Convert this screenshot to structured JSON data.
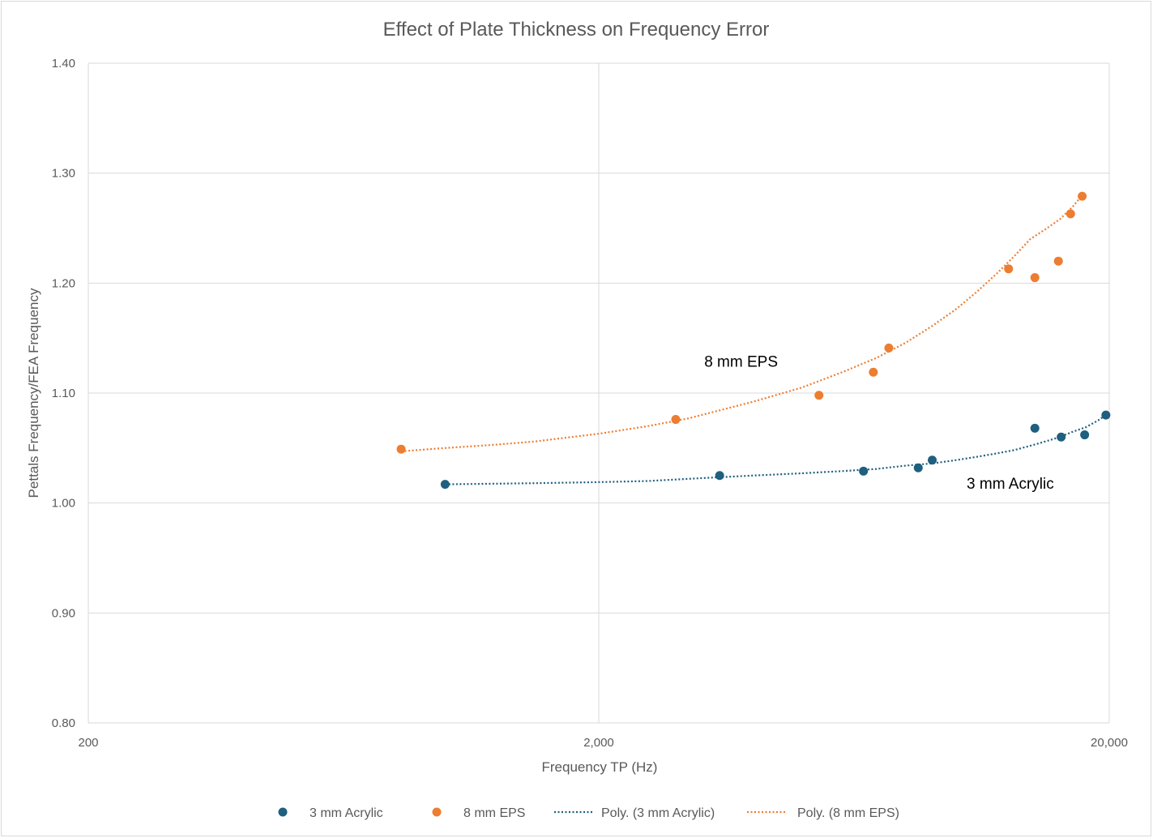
{
  "chart_data": {
    "type": "scatter",
    "title": "Effect of Plate Thickness on Frequency Error",
    "xlabel": "Frequency TP (Hz)",
    "ylabel": "Pettals Frequency/FEA Frequency",
    "x_scale": "log",
    "xlim": [
      200,
      20000
    ],
    "ylim": [
      0.8,
      1.4
    ],
    "x_ticks": [
      200,
      2000,
      20000
    ],
    "x_tick_labels": [
      "200",
      "2,000",
      "20,000"
    ],
    "y_ticks": [
      0.8,
      0.9,
      1.0,
      1.1,
      1.2,
      1.3,
      1.4
    ],
    "y_tick_labels": [
      "0.80",
      "0.90",
      "1.00",
      "1.10",
      "1.20",
      "1.30",
      "1.40"
    ],
    "grid": true,
    "legend_position": "bottom",
    "series": [
      {
        "name": "3 mm Acrylic",
        "color": "#1f5f7f",
        "x": [
          1000,
          3450,
          6600,
          8450,
          9000,
          14300,
          16100,
          17900,
          19700
        ],
        "y": [
          1.017,
          1.025,
          1.029,
          1.032,
          1.039,
          1.068,
          1.06,
          1.062,
          1.08
        ]
      },
      {
        "name": "8 mm EPS",
        "color": "#ed7d31",
        "x": [
          820,
          2830,
          5400,
          6900,
          7400,
          12700,
          14300,
          15900,
          16800,
          17700
        ],
        "y": [
          1.049,
          1.076,
          1.098,
          1.119,
          1.141,
          1.213,
          1.205,
          1.22,
          1.263,
          1.279
        ]
      }
    ],
    "trendlines": [
      {
        "name": "Poly. (3 mm Acrylic)",
        "color": "#1f5f7f",
        "x": [
          1000,
          1500,
          2000,
          2500,
          3000,
          4000,
          5000,
          6000,
          7000,
          8000,
          9000,
          10000,
          11000,
          12000,
          13000,
          14000,
          15000,
          16000,
          17000,
          18000,
          19000,
          19700
        ],
        "y": [
          1.017,
          1.018,
          1.019,
          1.02,
          1.022,
          1.025,
          1.027,
          1.029,
          1.031,
          1.034,
          1.036,
          1.039,
          1.042,
          1.045,
          1.048,
          1.052,
          1.056,
          1.06,
          1.065,
          1.069,
          1.075,
          1.08
        ]
      },
      {
        "name": "Poly. (8 mm EPS)",
        "color": "#ed7d31",
        "x": [
          820,
          1000,
          1250,
          1500,
          2000,
          2500,
          3000,
          4000,
          5000,
          6000,
          7000,
          8000,
          9000,
          10000,
          11000,
          12000,
          13000,
          14000,
          15000,
          16000,
          17000,
          17700
        ],
        "y": [
          1.047,
          1.05,
          1.053,
          1.056,
          1.063,
          1.07,
          1.077,
          1.092,
          1.105,
          1.119,
          1.132,
          1.146,
          1.161,
          1.176,
          1.192,
          1.208,
          1.224,
          1.24,
          1.249,
          1.258,
          1.27,
          1.28
        ]
      }
    ],
    "annotations": [
      {
        "text": "8 mm EPS",
        "x": 3800,
        "y": 1.124
      },
      {
        "text": "3 mm Acrylic",
        "x": 12800,
        "y": 1.013
      }
    ],
    "legend": [
      {
        "label": "3 mm Acrylic",
        "kind": "marker",
        "color": "#1f5f7f"
      },
      {
        "label": "8 mm EPS",
        "kind": "marker",
        "color": "#ed7d31"
      },
      {
        "label": "Poly. (3 mm Acrylic)",
        "kind": "dotted-line",
        "color": "#1f5f7f"
      },
      {
        "label": "Poly. (8 mm EPS)",
        "kind": "dotted-line",
        "color": "#ed7d31"
      }
    ]
  }
}
